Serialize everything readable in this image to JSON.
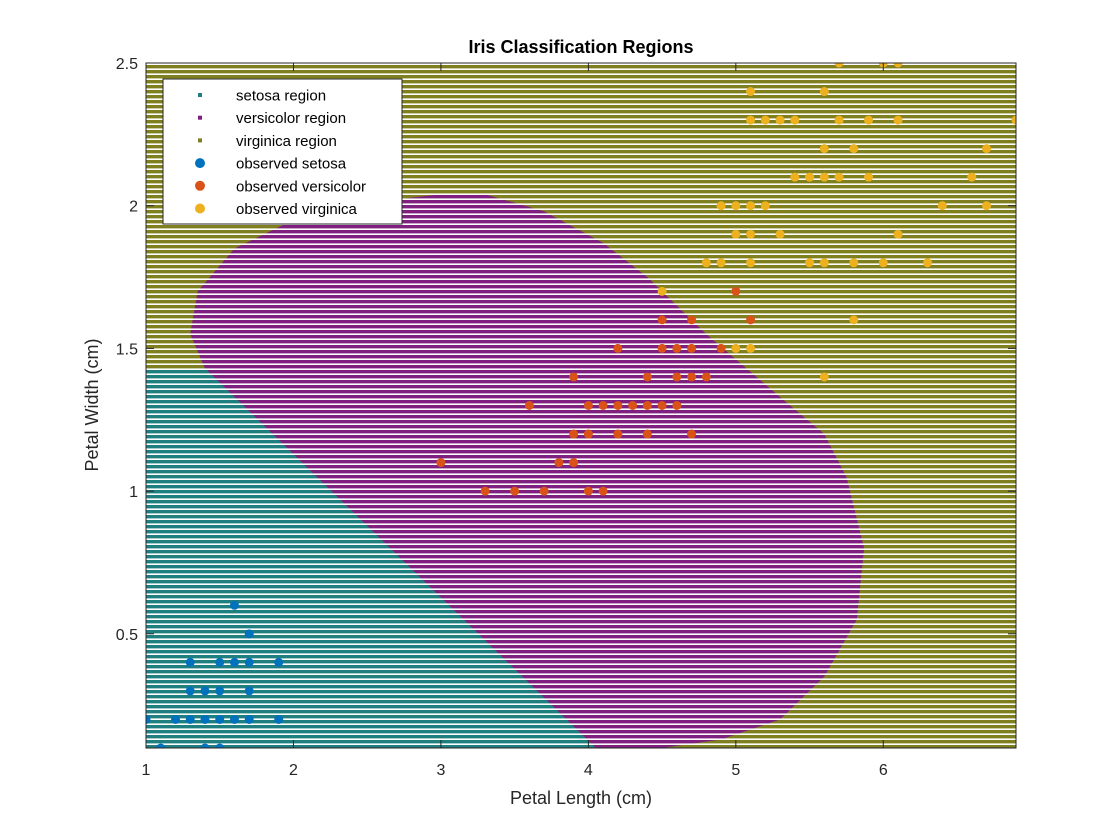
{
  "chart_data": {
    "type": "scatter",
    "title": "Iris Classification Regions",
    "xlabel": "Petal Length (cm)",
    "ylabel": "Petal Width (cm)",
    "xlim": [
      1,
      6.9
    ],
    "ylim": [
      0.1,
      2.5
    ],
    "xticks": [
      1,
      2,
      3,
      4,
      5,
      6
    ],
    "yticks": [
      0.5,
      1,
      1.5,
      2,
      2.5
    ],
    "grid": false,
    "legend_position": "top-left",
    "legend": [
      {
        "label": "setosa region",
        "kind": "region",
        "color": "#1f7f7f"
      },
      {
        "label": "versicolor region",
        "kind": "region",
        "color": "#7f1f7f"
      },
      {
        "label": "virginica region",
        "kind": "region",
        "color": "#7f7f1f"
      },
      {
        "label": "observed setosa",
        "kind": "point",
        "color": "#0072bd"
      },
      {
        "label": "observed versicolor",
        "kind": "point",
        "color": "#d95319"
      },
      {
        "label": "observed virginica",
        "kind": "point",
        "color": "#edb120"
      }
    ],
    "regions": {
      "setosa_boundary": [
        [
          1,
          1.43
        ],
        [
          1.4,
          1.43
        ],
        [
          4.05,
          0.1
        ]
      ],
      "versicolor_boundary": [
        [
          1.4,
          1.43
        ],
        [
          1.3,
          1.55
        ],
        [
          1.35,
          1.7
        ],
        [
          1.6,
          1.85
        ],
        [
          2.0,
          1.95
        ],
        [
          2.5,
          2.01
        ],
        [
          3.0,
          2.04
        ],
        [
          3.3,
          2.04
        ],
        [
          3.7,
          1.98
        ],
        [
          4.1,
          1.87
        ],
        [
          4.4,
          1.75
        ],
        [
          4.8,
          1.55
        ],
        [
          5.3,
          1.33
        ],
        [
          5.6,
          1.2
        ],
        [
          5.75,
          1.05
        ],
        [
          5.87,
          0.8
        ],
        [
          5.82,
          0.55
        ],
        [
          5.6,
          0.35
        ],
        [
          5.3,
          0.2
        ],
        [
          4.9,
          0.13
        ],
        [
          4.5,
          0.1
        ],
        [
          4.05,
          0.1
        ]
      ]
    },
    "series": [
      {
        "name": "observed setosa",
        "color": "#0072bd",
        "points": [
          [
            1.0,
            0.2
          ],
          [
            1.1,
            0.1
          ],
          [
            1.2,
            0.2
          ],
          [
            1.3,
            0.2
          ],
          [
            1.3,
            0.3
          ],
          [
            1.3,
            0.4
          ],
          [
            1.4,
            0.1
          ],
          [
            1.4,
            0.2
          ],
          [
            1.4,
            0.3
          ],
          [
            1.5,
            0.1
          ],
          [
            1.5,
            0.2
          ],
          [
            1.5,
            0.3
          ],
          [
            1.5,
            0.4
          ],
          [
            1.6,
            0.2
          ],
          [
            1.6,
            0.4
          ],
          [
            1.6,
            0.6
          ],
          [
            1.7,
            0.2
          ],
          [
            1.7,
            0.3
          ],
          [
            1.7,
            0.4
          ],
          [
            1.7,
            0.5
          ],
          [
            1.9,
            0.2
          ],
          [
            1.9,
            0.4
          ]
        ]
      },
      {
        "name": "observed versicolor",
        "color": "#d95319",
        "points": [
          [
            3.0,
            1.1
          ],
          [
            3.3,
            1.0
          ],
          [
            3.5,
            1.0
          ],
          [
            3.6,
            1.3
          ],
          [
            3.7,
            1.0
          ],
          [
            3.8,
            1.1
          ],
          [
            3.9,
            1.1
          ],
          [
            3.9,
            1.2
          ],
          [
            3.9,
            1.4
          ],
          [
            4.0,
            1.0
          ],
          [
            4.0,
            1.2
          ],
          [
            4.0,
            1.3
          ],
          [
            4.1,
            1.0
          ],
          [
            4.1,
            1.3
          ],
          [
            4.2,
            1.2
          ],
          [
            4.2,
            1.3
          ],
          [
            4.2,
            1.5
          ],
          [
            4.3,
            1.3
          ],
          [
            4.4,
            1.2
          ],
          [
            4.4,
            1.3
          ],
          [
            4.4,
            1.4
          ],
          [
            4.5,
            1.3
          ],
          [
            4.5,
            1.5
          ],
          [
            4.5,
            1.6
          ],
          [
            4.6,
            1.3
          ],
          [
            4.6,
            1.5
          ],
          [
            4.6,
            1.4
          ],
          [
            4.7,
            1.2
          ],
          [
            4.7,
            1.4
          ],
          [
            4.7,
            1.5
          ],
          [
            4.7,
            1.6
          ],
          [
            4.8,
            1.4
          ],
          [
            4.9,
            1.5
          ],
          [
            5.0,
            1.7
          ],
          [
            5.1,
            1.6
          ]
        ]
      },
      {
        "name": "observed virginica",
        "color": "#edb120",
        "points": [
          [
            4.5,
            1.7
          ],
          [
            4.8,
            1.8
          ],
          [
            4.9,
            1.8
          ],
          [
            4.9,
            2.0
          ],
          [
            5.0,
            1.5
          ],
          [
            5.0,
            1.9
          ],
          [
            5.0,
            2.0
          ],
          [
            5.1,
            1.5
          ],
          [
            5.1,
            1.8
          ],
          [
            5.1,
            1.9
          ],
          [
            5.1,
            2.0
          ],
          [
            5.1,
            2.3
          ],
          [
            5.1,
            2.4
          ],
          [
            5.2,
            2.0
          ],
          [
            5.2,
            2.3
          ],
          [
            5.3,
            1.9
          ],
          [
            5.3,
            2.3
          ],
          [
            5.4,
            2.1
          ],
          [
            5.4,
            2.3
          ],
          [
            5.5,
            1.8
          ],
          [
            5.5,
            2.1
          ],
          [
            5.6,
            1.4
          ],
          [
            5.6,
            1.8
          ],
          [
            5.6,
            2.1
          ],
          [
            5.6,
            2.2
          ],
          [
            5.6,
            2.4
          ],
          [
            5.7,
            2.1
          ],
          [
            5.7,
            2.3
          ],
          [
            5.7,
            2.5
          ],
          [
            5.8,
            1.6
          ],
          [
            5.8,
            1.8
          ],
          [
            5.8,
            2.2
          ],
          [
            5.9,
            2.1
          ],
          [
            5.9,
            2.3
          ],
          [
            6.0,
            1.8
          ],
          [
            6.0,
            2.5
          ],
          [
            6.1,
            1.9
          ],
          [
            6.1,
            2.3
          ],
          [
            6.1,
            2.5
          ],
          [
            6.3,
            1.8
          ],
          [
            6.4,
            2.0
          ],
          [
            6.6,
            2.1
          ],
          [
            6.7,
            2.0
          ],
          [
            6.7,
            2.2
          ],
          [
            6.9,
            2.3
          ]
        ]
      }
    ]
  }
}
